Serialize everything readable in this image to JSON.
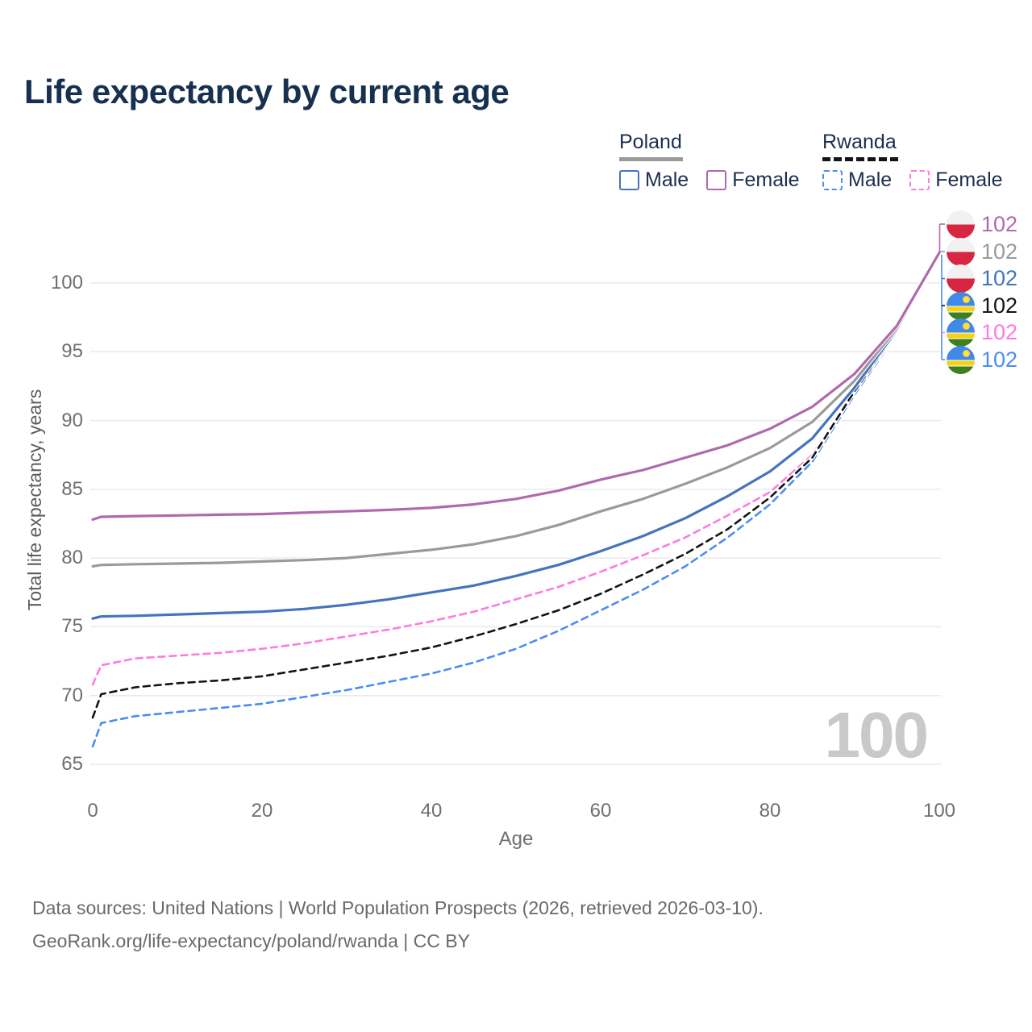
{
  "title": "Life expectancy by current age",
  "legend": {
    "groups": [
      {
        "country": "Poland",
        "line_style": "solid",
        "items": [
          {
            "label": "Male"
          },
          {
            "label": "Female"
          }
        ]
      },
      {
        "country": "Rwanda",
        "line_style": "dashed",
        "items": [
          {
            "label": "Male"
          },
          {
            "label": "Female"
          }
        ]
      }
    ]
  },
  "watermark_age": "100",
  "footer": {
    "line1": "Data sources: United Nations | World Population Prospects (2026, retrieved 2026-03-10).",
    "line2": "GeoRank.org/life-expectancy/poland/rwanda | CC BY"
  },
  "chart_data": {
    "type": "line",
    "title": "Life expectancy by current age",
    "xlabel": "Age",
    "ylabel": "Total life expectancy, years",
    "xlim": [
      0,
      100
    ],
    "ylim": [
      63,
      105
    ],
    "xticks": [
      0,
      20,
      40,
      60,
      80,
      100
    ],
    "yticks": [
      65,
      70,
      75,
      80,
      85,
      90,
      95,
      100
    ],
    "grid": "horizontal",
    "legend_position": "top-right",
    "ages": [
      0,
      1,
      5,
      10,
      15,
      20,
      25,
      30,
      35,
      40,
      45,
      50,
      55,
      60,
      65,
      70,
      75,
      80,
      85,
      90,
      95,
      100
    ],
    "series": [
      {
        "id": "poland-female",
        "name": "Poland Female",
        "country": "Poland",
        "sex": "Female",
        "color": "#b169ad",
        "dash": false,
        "end_label": "102",
        "values": [
          82.8,
          83.0,
          83.05,
          83.1,
          83.15,
          83.2,
          83.3,
          83.4,
          83.5,
          83.65,
          83.9,
          84.3,
          84.9,
          85.7,
          86.4,
          87.3,
          88.2,
          89.4,
          91.0,
          93.4,
          96.9,
          102.2
        ]
      },
      {
        "id": "poland-total",
        "name": "Poland",
        "country": "Poland",
        "sex": "All",
        "color": "#9a9a9a",
        "dash": false,
        "end_label": "102",
        "values": [
          79.4,
          79.5,
          79.55,
          79.6,
          79.65,
          79.75,
          79.85,
          80.0,
          80.3,
          80.6,
          81.0,
          81.6,
          82.4,
          83.4,
          84.3,
          85.4,
          86.6,
          88.0,
          89.9,
          92.9,
          96.7,
          102.2
        ]
      },
      {
        "id": "poland-male",
        "name": "Poland Male",
        "country": "Poland",
        "sex": "Male",
        "color": "#4573bd",
        "dash": false,
        "end_label": "102",
        "values": [
          75.6,
          75.75,
          75.8,
          75.9,
          76.0,
          76.1,
          76.3,
          76.6,
          77.0,
          77.5,
          78.0,
          78.7,
          79.5,
          80.5,
          81.6,
          82.9,
          84.5,
          86.3,
          88.7,
          92.4,
          96.6,
          102.2
        ]
      },
      {
        "id": "rwanda-total",
        "name": "Rwanda",
        "country": "Rwanda",
        "sex": "All",
        "color": "#141414",
        "dash": true,
        "end_label": "102",
        "values": [
          68.4,
          70.1,
          70.6,
          70.9,
          71.1,
          71.4,
          71.9,
          72.4,
          72.9,
          73.5,
          74.3,
          75.2,
          76.2,
          77.4,
          78.8,
          80.3,
          82.1,
          84.4,
          87.3,
          92.15,
          96.5,
          102.2
        ]
      },
      {
        "id": "rwanda-female",
        "name": "Rwanda Female",
        "country": "Rwanda",
        "sex": "Female",
        "color": "#fc7be0",
        "dash": true,
        "end_label": "102",
        "values": [
          70.8,
          72.2,
          72.7,
          72.9,
          73.1,
          73.4,
          73.8,
          74.3,
          74.8,
          75.4,
          76.1,
          77.0,
          77.9,
          79.0,
          80.2,
          81.5,
          83.1,
          84.8,
          87.5,
          92.2,
          96.4,
          102.2
        ]
      },
      {
        "id": "rwanda-male",
        "name": "Rwanda Male",
        "country": "Rwanda",
        "sex": "Male",
        "color": "#4b8df2",
        "dash": true,
        "end_label": "102",
        "values": [
          66.3,
          68.0,
          68.5,
          68.8,
          69.1,
          69.4,
          69.9,
          70.4,
          71.0,
          71.6,
          72.4,
          73.4,
          74.7,
          76.2,
          77.7,
          79.4,
          81.5,
          83.9,
          87.0,
          91.9,
          96.3,
          102.2
        ]
      }
    ]
  }
}
